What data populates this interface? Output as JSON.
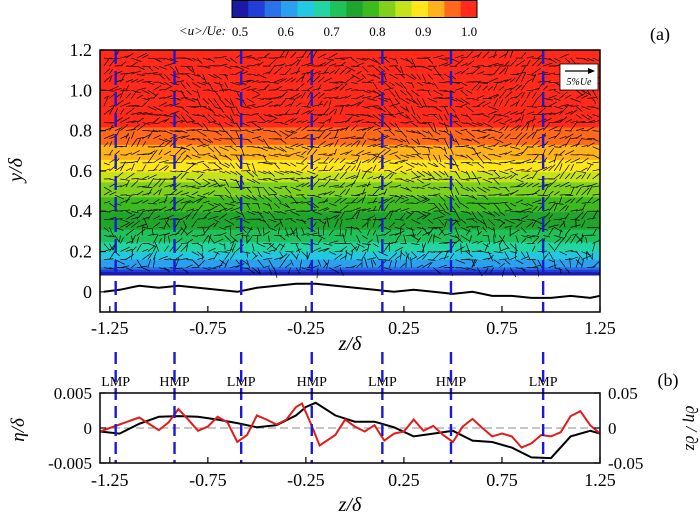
{
  "chart_data": [
    {
      "type": "heatmap",
      "panel_label": "(a)",
      "colorbar": {
        "label": "<u>/Ue:",
        "ticks": [
          "0.5",
          "0.6",
          "0.7",
          "0.8",
          "0.9",
          "1.0"
        ],
        "range": [
          0.5,
          1.0
        ],
        "colors": [
          "#1a1aa6",
          "#1f3fd6",
          "#2a72e8",
          "#2aa0ee",
          "#23c8e3",
          "#22d6a3",
          "#1fc15a",
          "#1fa52c",
          "#3dba1e",
          "#7fd11c",
          "#c4e31b",
          "#ffe61a",
          "#ffb21a",
          "#ff6a1a",
          "#ff2a1a"
        ]
      },
      "vector_scale_label": "5%Ue",
      "xlabel": "z/δ",
      "ylabel": "y/δ",
      "xlim": [
        -1.3,
        1.25
      ],
      "ylim": [
        -0.1,
        1.2
      ],
      "xticks": [
        "-1.25",
        "-0.75",
        "-0.25",
        "0.25",
        "0.75",
        "1.25"
      ],
      "yticks": [
        "0",
        "0.2",
        "0.4",
        "0.6",
        "0.8",
        "1.0",
        "1.2"
      ],
      "contour_levels": [
        {
          "y": 1.2,
          "value": 1.0
        },
        {
          "y": 0.95,
          "value": 1.0
        },
        {
          "y": 0.82,
          "value": 0.97
        },
        {
          "y": 0.72,
          "value": 0.93
        },
        {
          "y": 0.62,
          "value": 0.88
        },
        {
          "y": 0.52,
          "value": 0.82
        },
        {
          "y": 0.4,
          "value": 0.77
        },
        {
          "y": 0.28,
          "value": 0.72
        },
        {
          "y": 0.18,
          "value": 0.66
        },
        {
          "y": 0.12,
          "value": 0.6
        },
        {
          "y": 0.09,
          "value": 0.52
        }
      ],
      "surface_line": {
        "x": [
          -1.28,
          -1.2,
          -1.1,
          -1.0,
          -0.9,
          -0.8,
          -0.7,
          -0.6,
          -0.5,
          -0.4,
          -0.3,
          -0.2,
          -0.1,
          0.0,
          0.1,
          0.2,
          0.3,
          0.4,
          0.5,
          0.6,
          0.7,
          0.8,
          0.9,
          1.0,
          1.1,
          1.2,
          1.25
        ],
        "y": [
          0.0,
          0.01,
          0.03,
          0.02,
          0.03,
          0.02,
          0.01,
          0.0,
          0.02,
          0.03,
          0.04,
          0.04,
          0.03,
          0.02,
          0.01,
          0.0,
          0.01,
          0.0,
          -0.01,
          0.0,
          -0.02,
          -0.02,
          -0.03,
          -0.03,
          -0.02,
          -0.03,
          -0.02
        ]
      },
      "dashed_lines_x": [
        -1.22,
        -0.92,
        -0.58,
        -0.22,
        0.14,
        0.49,
        0.96
      ]
    },
    {
      "type": "line",
      "panel_label": "(b)",
      "xlabel": "z/δ",
      "ylabel_left": "η/δ",
      "ylabel_right": "∂η / ∂z",
      "xlim": [
        -1.3,
        1.25
      ],
      "ylim_left": [
        -0.005,
        0.005
      ],
      "ylim_right": [
        -0.05,
        0.05
      ],
      "xticks": [
        "-1.25",
        "-0.75",
        "-0.25",
        "0.25",
        "0.75",
        "1.25"
      ],
      "yticks_left": [
        "0.005",
        "0",
        "-0.005"
      ],
      "yticks_right": [
        "0.05",
        "0",
        "-0.05"
      ],
      "region_labels": [
        {
          "text": "LMP",
          "x": -1.22
        },
        {
          "text": "HMP",
          "x": -0.92
        },
        {
          "text": "LMP",
          "x": -0.58
        },
        {
          "text": "HMP",
          "x": -0.22
        },
        {
          "text": "LMP",
          "x": 0.14
        },
        {
          "text": "HMP",
          "x": 0.49
        },
        {
          "text": "LMP",
          "x": 0.96
        }
      ],
      "series": [
        {
          "axis": "left",
          "color": "#000000",
          "x": [
            -1.3,
            -1.2,
            -1.1,
            -1.0,
            -0.9,
            -0.8,
            -0.7,
            -0.6,
            -0.5,
            -0.4,
            -0.3,
            -0.25,
            -0.2,
            -0.1,
            0.0,
            0.1,
            0.2,
            0.3,
            0.4,
            0.5,
            0.6,
            0.7,
            0.8,
            0.9,
            1.0,
            1.1,
            1.2,
            1.25
          ],
          "y": [
            -0.0005,
            -0.0008,
            0.0006,
            0.0016,
            0.0017,
            0.0016,
            0.0012,
            0.0007,
            0.0001,
            0.0004,
            0.0018,
            0.003,
            0.0036,
            0.0018,
            0.0009,
            0.0009,
            0.0001,
            -0.0012,
            -0.0008,
            -0.0004,
            -0.0018,
            -0.002,
            -0.0028,
            -0.0042,
            -0.0043,
            -0.0012,
            -0.0004,
            -0.0008
          ]
        },
        {
          "axis": "right",
          "color": "#e21b1b",
          "x": [
            -1.3,
            -1.2,
            -1.1,
            -1.0,
            -0.95,
            -0.9,
            -0.85,
            -0.8,
            -0.75,
            -0.7,
            -0.65,
            -0.6,
            -0.55,
            -0.5,
            -0.45,
            -0.4,
            -0.35,
            -0.3,
            -0.27,
            -0.22,
            -0.18,
            -0.1,
            -0.05,
            0.0,
            0.05,
            0.1,
            0.15,
            0.2,
            0.25,
            0.3,
            0.35,
            0.4,
            0.45,
            0.5,
            0.55,
            0.6,
            0.65,
            0.7,
            0.75,
            0.8,
            0.85,
            0.9,
            0.95,
            1.0,
            1.05,
            1.1,
            1.15,
            1.2,
            1.25
          ],
          "y": [
            -0.005,
            0.005,
            0.015,
            -0.003,
            0.008,
            0.027,
            0.012,
            -0.004,
            0.002,
            0.016,
            0.008,
            -0.02,
            -0.01,
            0.018,
            0.012,
            0.005,
            0.012,
            0.03,
            0.035,
            0.003,
            -0.025,
            -0.01,
            0.012,
            0.002,
            -0.005,
            0.004,
            -0.018,
            -0.008,
            -0.005,
            0.012,
            -0.004,
            0.003,
            -0.01,
            -0.02,
            0.002,
            0.013,
            0.0,
            -0.012,
            -0.008,
            -0.012,
            -0.028,
            -0.022,
            -0.01,
            -0.012,
            -0.006,
            0.017,
            0.024,
            0.004,
            -0.008
          ]
        }
      ]
    }
  ]
}
